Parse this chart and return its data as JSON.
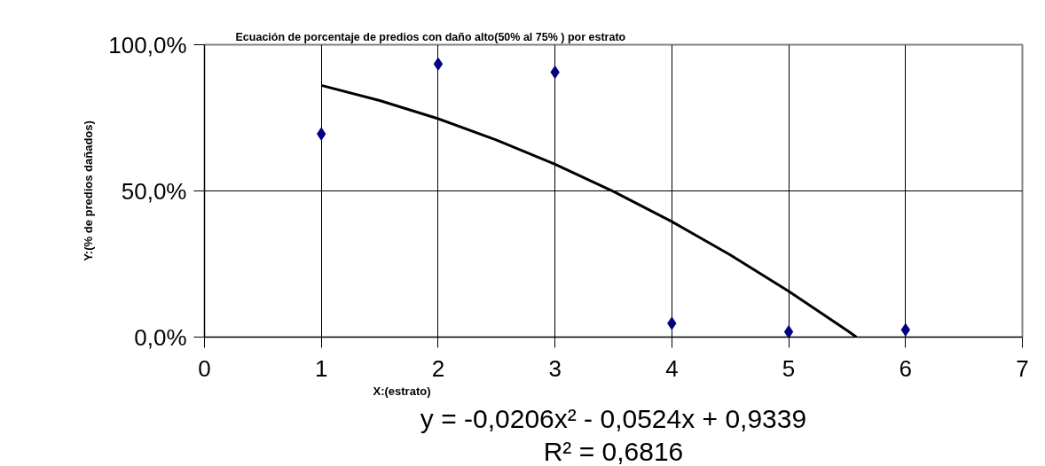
{
  "chart_data": {
    "type": "scatter",
    "title": "Ecuación de porcentaje de predios con daño alto(50% al 75% ) por estrato",
    "xlabel": "X:(estrato)",
    "ylabel": "Y:(% de predios dañados)",
    "x": [
      1,
      2,
      3,
      4,
      5,
      6
    ],
    "series": [
      {
        "color": "#000080",
        "marker": "diamond",
        "values": [
          69.5,
          93.4,
          90.6,
          4.7,
          1.8,
          2.5
        ]
      },
      {
        "type": "line",
        "color": "#000000",
        "line_style": "solid",
        "marker": "none",
        "x": [
          1,
          1.5,
          2,
          2.5,
          3,
          3.5,
          4,
          4.5,
          5,
          5.5,
          5.58
        ],
        "values": [
          86.1,
          80.9,
          74.7,
          67.4,
          59.1,
          49.8,
          39.5,
          28.1,
          15.7,
          2.3,
          0
        ]
      }
    ],
    "xlim": [
      0,
      7
    ],
    "xticks": [
      0,
      1,
      2,
      3,
      4,
      5,
      6,
      7
    ],
    "ylim": [
      0,
      100
    ],
    "yticks": [
      {
        "value": 0,
        "label": "0,0%"
      },
      {
        "value": 50,
        "label": "50,0%"
      },
      {
        "value": 100,
        "label": "100,0%"
      }
    ],
    "grid": true,
    "annotations": [
      "y = -0,0206x² - 0,0524x + 0,9339",
      "R² = 0,6816"
    ]
  }
}
